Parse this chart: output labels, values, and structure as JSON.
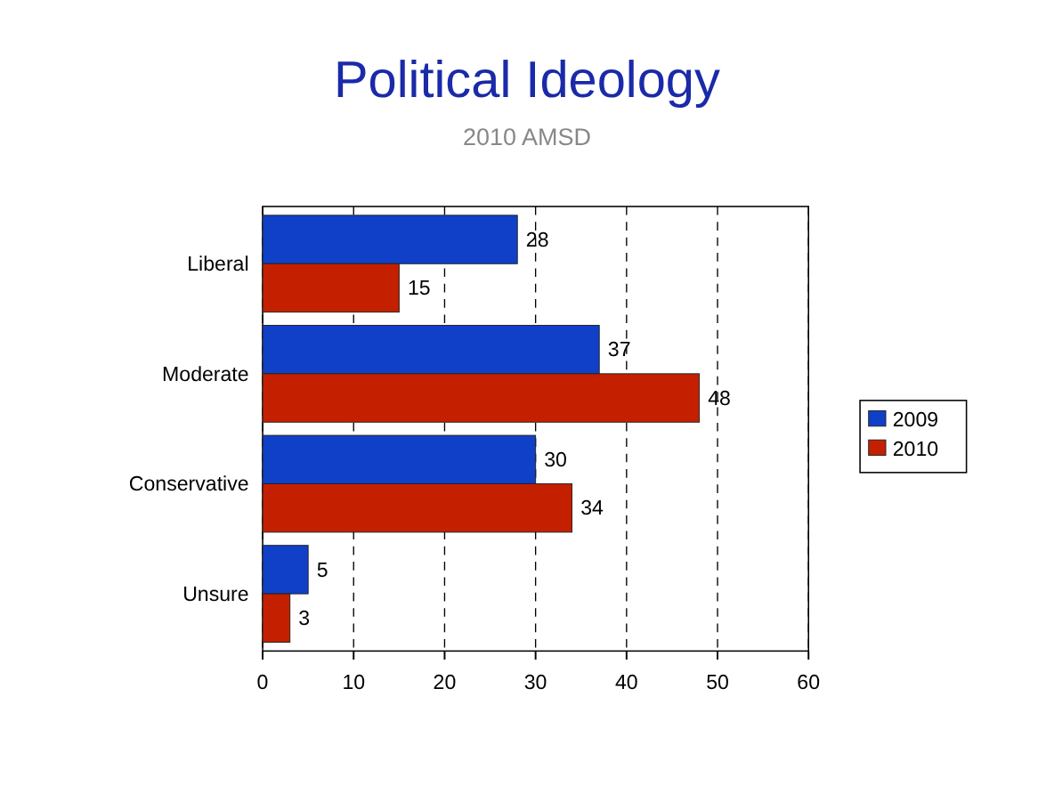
{
  "chart_data": {
    "type": "bar",
    "orientation": "horizontal",
    "title": "Political Ideology",
    "subtitle": "2010 AMSD",
    "categories": [
      "Liberal",
      "Moderate",
      "Conservative",
      "Unsure"
    ],
    "series": [
      {
        "name": "2009",
        "color": "#1040c8",
        "values": [
          28,
          37,
          30,
          5
        ]
      },
      {
        "name": "2010",
        "color": "#c42000",
        "values": [
          15,
          48,
          34,
          3
        ]
      }
    ],
    "xlim": [
      0,
      60
    ],
    "xticks": [
      0,
      10,
      20,
      30,
      40,
      50,
      60
    ],
    "grid": "x",
    "legend": "right",
    "data_labels": true
  }
}
